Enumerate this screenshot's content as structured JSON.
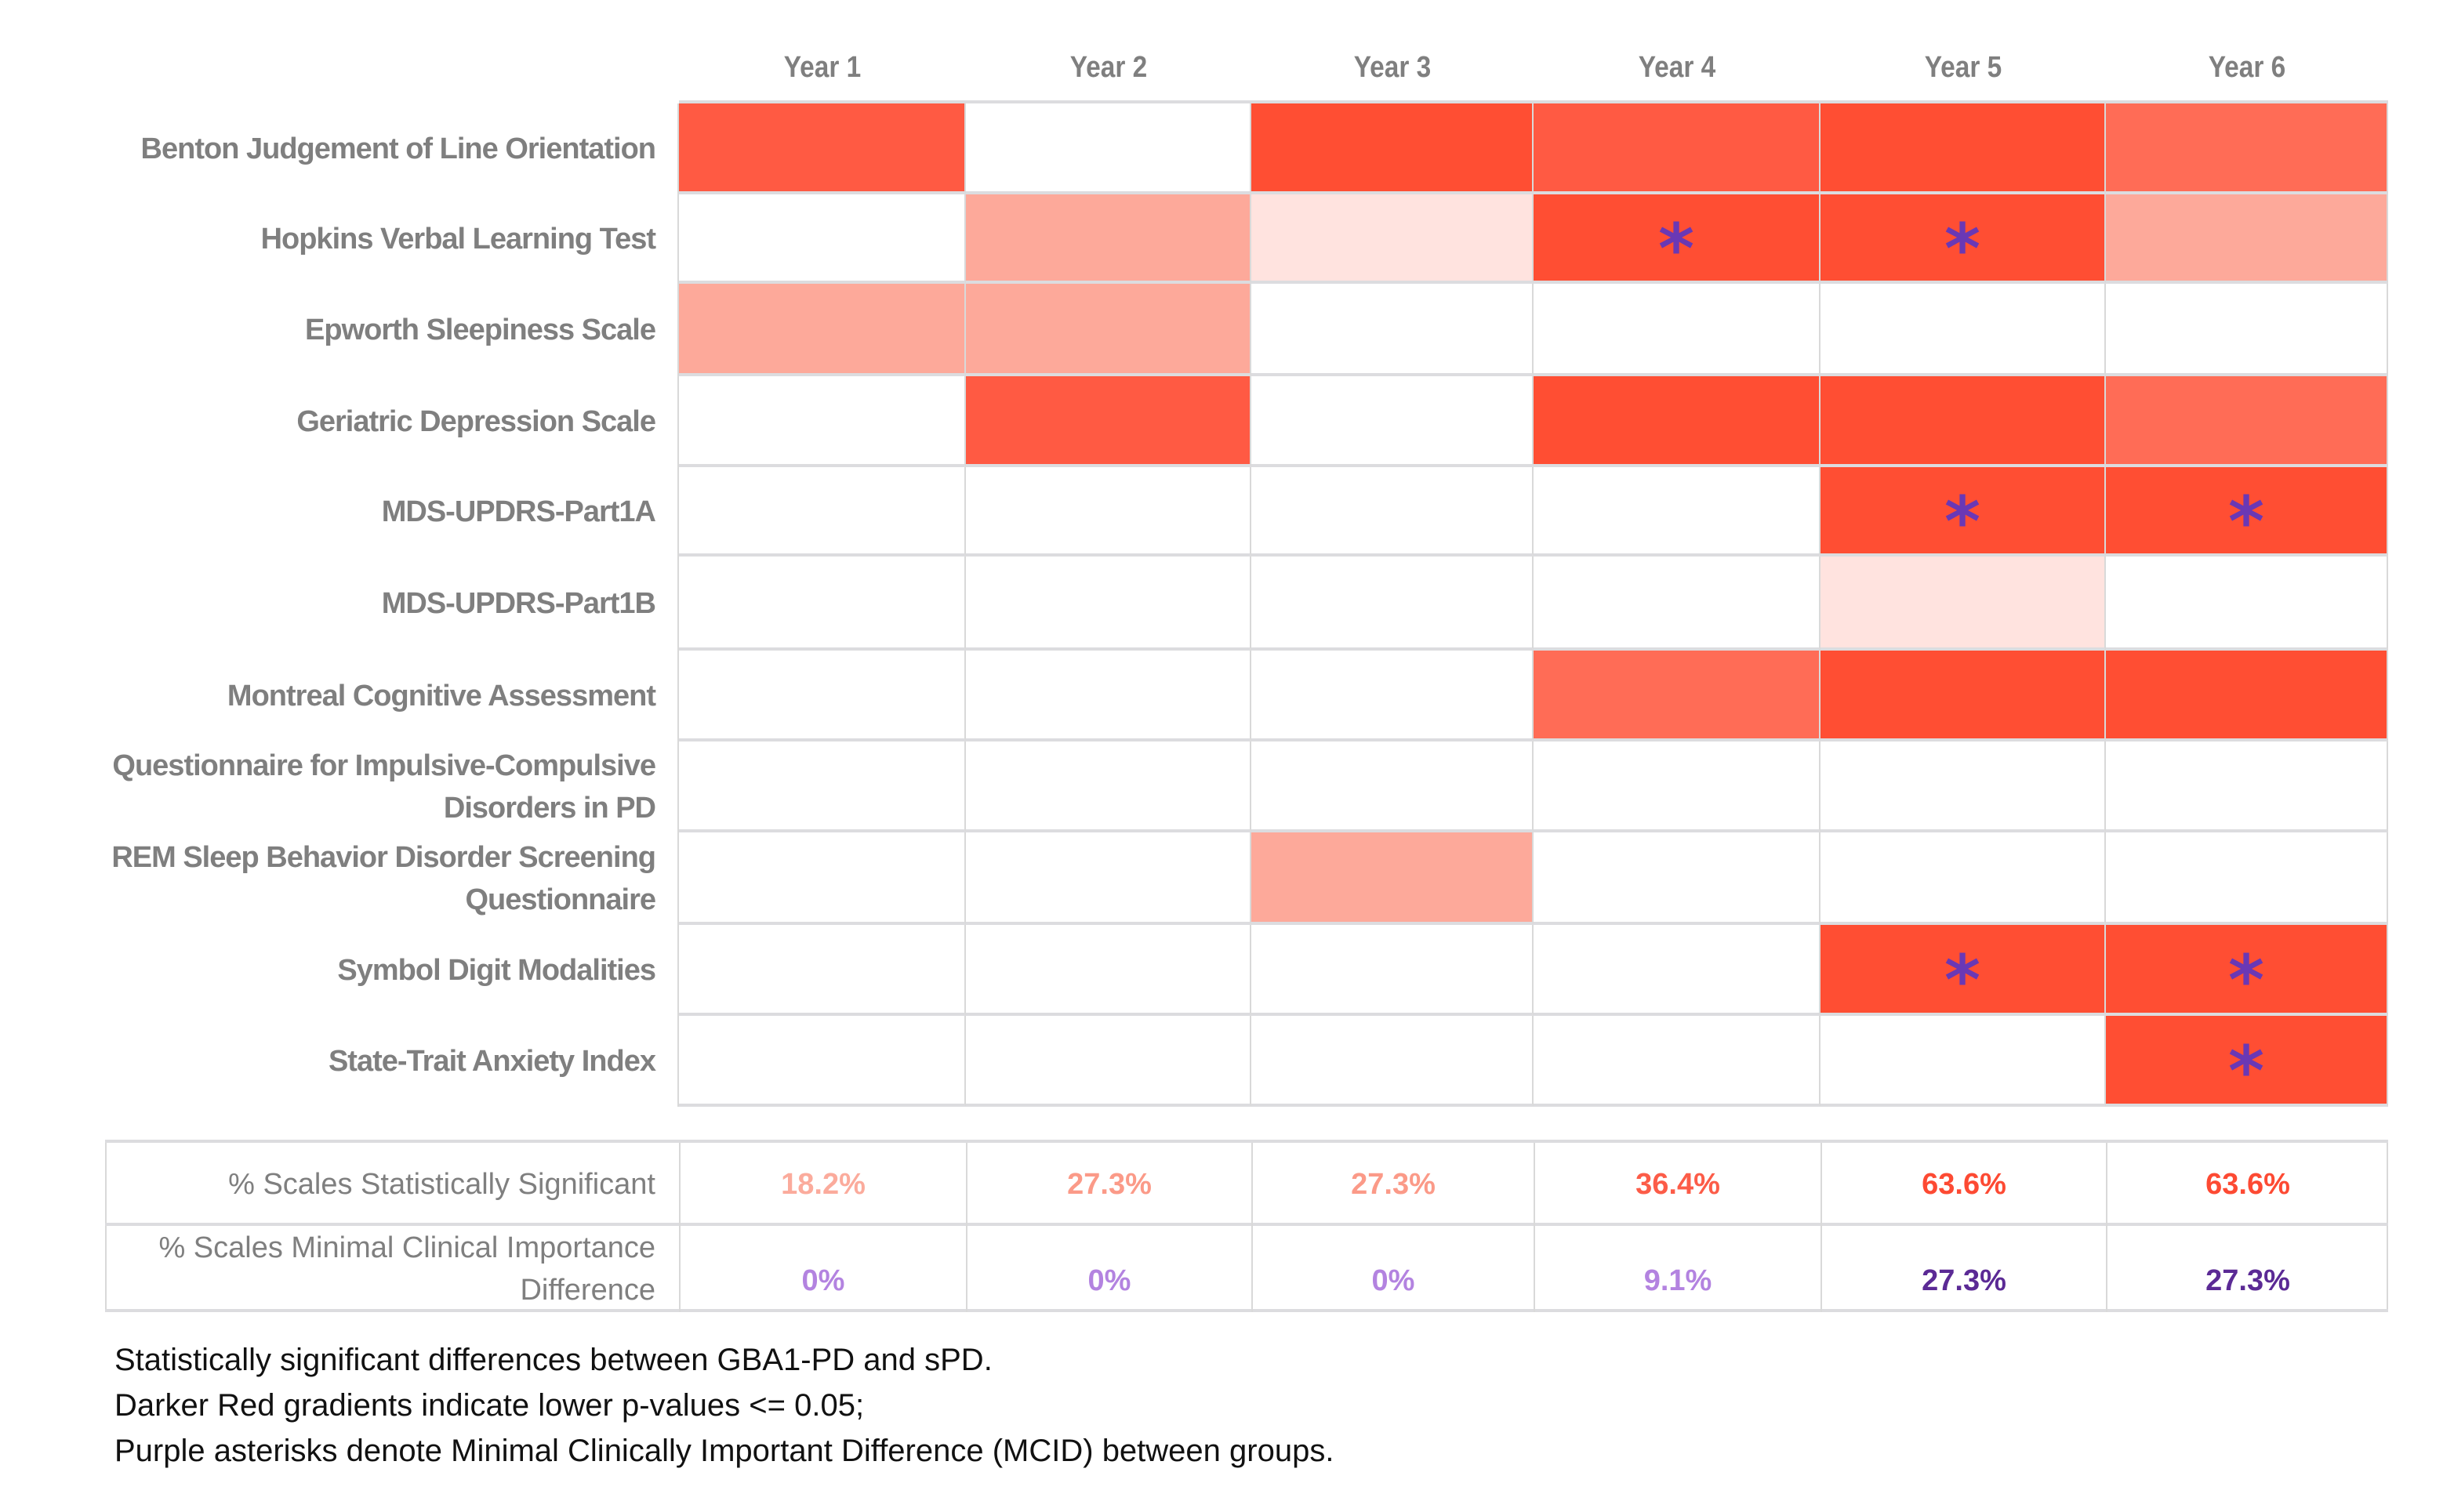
{
  "chart_data": {
    "type": "heatmap",
    "title": "",
    "columns": [
      "Year 1",
      "Year 2",
      "Year 3",
      "Year 4",
      "Year 5",
      "Year 6"
    ],
    "rows": [
      "Benton Judgement of Line Orientation",
      "Hopkins Verbal Learning Test",
      "Epworth Sleepiness Scale",
      "Geriatric Depression Scale",
      "MDS-UPDRS-Part1A",
      "MDS-UPDRS-Part1B",
      "Montreal Cognitive Assessment",
      "Questionnaire for Impulsive-Compulsive Disorders in PD",
      "REM Sleep Behavior Disorder Screening Questionnaire",
      "Symbol Digit Modalities",
      "State-Trait Anxiety Index"
    ],
    "significance_level_legend": "0 = not significant, higher = darker red (lower p-value)",
    "significance_levels": [
      [
        4,
        0,
        5,
        4,
        5,
        3
      ],
      [
        0,
        2,
        1,
        5,
        5,
        2
      ],
      [
        2,
        2,
        0,
        0,
        0,
        0
      ],
      [
        0,
        4,
        0,
        5,
        5,
        3
      ],
      [
        0,
        0,
        0,
        0,
        5,
        5
      ],
      [
        0,
        0,
        0,
        0,
        1,
        0
      ],
      [
        0,
        0,
        0,
        3,
        5,
        5
      ],
      [
        0,
        0,
        0,
        0,
        0,
        0
      ],
      [
        0,
        0,
        2,
        0,
        0,
        0
      ],
      [
        0,
        0,
        0,
        0,
        5,
        5
      ],
      [
        0,
        0,
        0,
        0,
        0,
        5
      ]
    ],
    "mcid": [
      [
        false,
        false,
        false,
        false,
        false,
        false
      ],
      [
        false,
        false,
        false,
        true,
        true,
        false
      ],
      [
        false,
        false,
        false,
        false,
        false,
        false
      ],
      [
        false,
        false,
        false,
        false,
        false,
        false
      ],
      [
        false,
        false,
        false,
        false,
        true,
        true
      ],
      [
        false,
        false,
        false,
        false,
        false,
        false
      ],
      [
        false,
        false,
        false,
        false,
        false,
        false
      ],
      [
        false,
        false,
        false,
        false,
        false,
        false
      ],
      [
        false,
        false,
        false,
        false,
        false,
        false
      ],
      [
        false,
        false,
        false,
        false,
        true,
        true
      ],
      [
        false,
        false,
        false,
        false,
        false,
        true
      ]
    ],
    "color_scale": {
      "0": "#ffffff",
      "1": "#ffe3df",
      "2": "#fda99a",
      "3": "#ff6c56",
      "4": "#ff5a43",
      "5": "#ff4e33"
    },
    "asterisk_symbol": "*",
    "asterisk_color": "#6a38b5",
    "summary": {
      "rows": [
        {
          "label": "% Scales Statistically Significant",
          "values": [
            "18.2%",
            "27.3%",
            "27.3%",
            "36.4%",
            "63.6%",
            "63.6%"
          ],
          "colors": [
            "#fbab9c",
            "#fb9a88",
            "#fb9a88",
            "#fc5c48",
            "#fd4a33",
            "#fd4a33"
          ]
        },
        {
          "label": "% Scales Minimal Clinical Importance Difference",
          "values": [
            "0%",
            "0%",
            "0%",
            "9.1%",
            "27.3%",
            "27.3%"
          ],
          "colors": [
            "#b383e0",
            "#b383e0",
            "#b383e0",
            "#b383e0",
            "#5b2a95",
            "#5b2a95"
          ]
        }
      ]
    },
    "notes": [
      "Statistically significant differences between GBA1-PD and sPD.",
      "Darker Red gradients indicate lower p-values <= 0.05;",
      "Purple asterisks denote Minimal Clinically Important Difference (MCID) between groups."
    ]
  }
}
